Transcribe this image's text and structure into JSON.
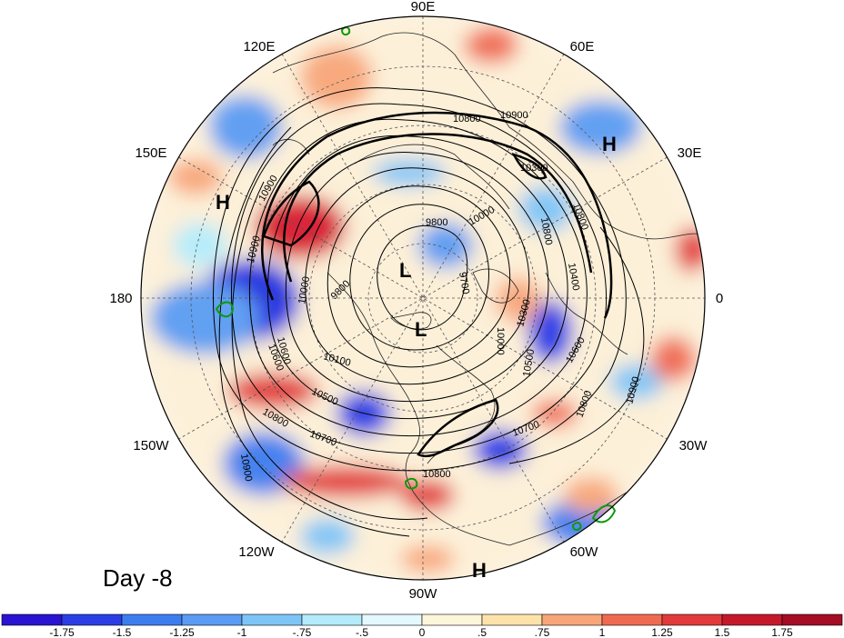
{
  "day_label": "Day -8",
  "longitude_labels": [
    "90E",
    "60E",
    "30E",
    "0",
    "30W",
    "60W",
    "90W",
    "120W",
    "150W",
    "180",
    "150E",
    "120E"
  ],
  "pressure_centers": [
    {
      "type": "H",
      "lon_label": "near 120E-150E"
    },
    {
      "type": "H",
      "lon_label": "near 30E-60E"
    },
    {
      "type": "L"
    },
    {
      "type": "L"
    },
    {
      "type": "H",
      "lon_label": "near 60W-90W"
    }
  ],
  "contour_labels": [
    "10800",
    "10900",
    "10900",
    "10300",
    "10800",
    "10900",
    "9800",
    "10000",
    "9700",
    "10400",
    "10800",
    "10000",
    "9800",
    "10000",
    "10300",
    "10100",
    "10500",
    "10600",
    "10600",
    "10500",
    "10700",
    "10800",
    "10800",
    "10700",
    "10900",
    "10800",
    "10900",
    "10600"
  ],
  "colorbar": {
    "tick_labels": [
      "-1.75",
      "-1.5",
      "-1.25",
      "-1",
      "-.75",
      "-.5",
      "0",
      ".5",
      ".75",
      "1",
      "1.25",
      "1.5",
      "1.75"
    ],
    "colors": [
      "#2a14d2",
      "#2b3ee6",
      "#3c7df0",
      "#5a9bf3",
      "#7ec5f7",
      "#b3ebfb",
      "#e3f9fd",
      "#fdf6db",
      "#fde2a9",
      "#f8a679",
      "#f06a52",
      "#e23a3a",
      "#c5182b",
      "#a40d25"
    ]
  },
  "colors": {
    "contour": "#000000",
    "green_contour": "#0a9a0a",
    "grid": "#555555"
  }
}
